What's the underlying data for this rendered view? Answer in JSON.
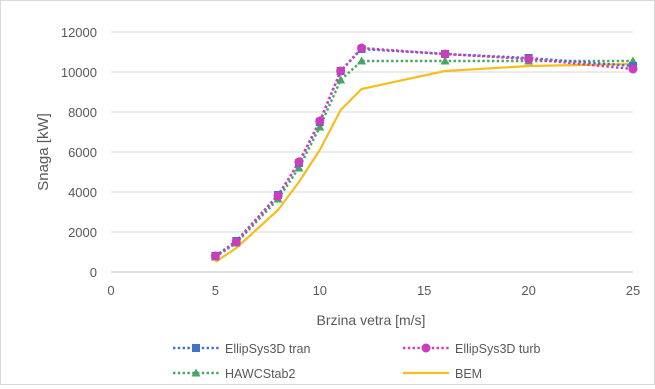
{
  "chart_data": {
    "type": "line",
    "title": "",
    "xlabel": "Brzina vetra [m/s]",
    "ylabel": "Snaga [kW]",
    "xlim": [
      0,
      25
    ],
    "ylim": [
      0,
      12000
    ],
    "x_ticks": [
      0,
      5,
      10,
      15,
      20,
      25
    ],
    "y_ticks": [
      0,
      2000,
      4000,
      6000,
      8000,
      10000,
      12000
    ],
    "grid": "horizontal",
    "legend_position": "bottom",
    "series": [
      {
        "name": "EllipSys3D tran",
        "color": "#4472c4",
        "line": "dotted",
        "marker": "square",
        "x": [
          5,
          6,
          8,
          9,
          10,
          11,
          12,
          16,
          20,
          25
        ],
        "y": [
          800,
          1550,
          3850,
          5450,
          7500,
          10050,
          11150,
          10900,
          10700,
          10300
        ]
      },
      {
        "name": "EllipSys3D turb",
        "color": "#cc3dbb",
        "line": "dotted",
        "marker": "circle",
        "x": [
          5,
          6,
          8,
          9,
          10,
          11,
          12,
          16,
          20,
          25
        ],
        "y": [
          800,
          1500,
          3800,
          5500,
          7550,
          10050,
          11200,
          10900,
          10650,
          10150
        ]
      },
      {
        "name": "HAWCStab2",
        "color": "#4aa564",
        "line": "dotted",
        "marker": "triangle",
        "x": [
          5,
          6,
          8,
          9,
          10,
          11,
          12,
          16,
          20,
          25
        ],
        "y": [
          750,
          1450,
          3650,
          5200,
          7250,
          9600,
          10550,
          10550,
          10550,
          10550
        ]
      },
      {
        "name": "BEM",
        "color": "#f5be1e",
        "line": "solid",
        "marker": "none",
        "x": [
          5,
          6,
          8,
          9,
          10,
          11,
          12,
          16,
          20,
          25
        ],
        "y": [
          500,
          1200,
          3100,
          4500,
          6100,
          8100,
          9150,
          10050,
          10300,
          10400
        ]
      }
    ]
  }
}
